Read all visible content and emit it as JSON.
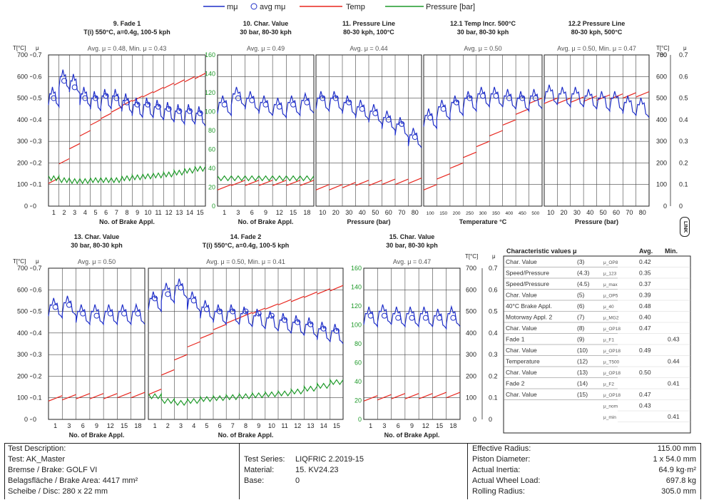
{
  "legend": [
    {
      "label": "mμ",
      "color": "#1f2fc8",
      "kind": "line"
    },
    {
      "label": "avg mμ",
      "color": "#1f2fc8",
      "kind": "circle"
    },
    {
      "label": "Temp",
      "color": "#e8261e",
      "kind": "line"
    },
    {
      "label": "Pressure [bar]",
      "color": "#1f9a2a",
      "kind": "line"
    }
  ],
  "axis_labels": {
    "temp_left": "T[°C]",
    "mu_left": "μ",
    "temp_right": "T[°C]",
    "mu_right": "μ",
    "temp_ticks": [
      "0",
      "100",
      "200",
      "300",
      "400",
      "500",
      "600",
      "700"
    ],
    "mu_ticks": [
      "0",
      "0.1",
      "0.2",
      "0.3",
      "0.4",
      "0.5",
      "0.6",
      "0.7"
    ],
    "right_temp_ticks": [
      "0",
      "100",
      "200",
      "300",
      "400",
      "500",
      "600",
      "700",
      "780"
    ],
    "pressure_ticks": [
      "0",
      "20",
      "40",
      "60",
      "80",
      "100",
      "120",
      "140",
      "160"
    ]
  },
  "link_badge": "LINK",
  "chart_data": [
    {
      "type": "line",
      "title": "9. Fade 1",
      "subtitle": "T(i) 550°C, a=0.4g, 100-5 kph",
      "avg_label": "Avg. μ = 0.48, Min. μ = 0.43",
      "xlabel": "No. of Brake Appl.",
      "x_ticks": [
        "1",
        "2",
        "3",
        "4",
        "5",
        "6",
        "7",
        "8",
        "9",
        "10",
        "11",
        "12",
        "13",
        "14",
        "15"
      ],
      "series": [
        {
          "name": "mμ",
          "values": [
            0.52,
            0.6,
            0.58,
            0.52,
            0.5,
            0.51,
            0.51,
            0.49,
            0.47,
            0.47,
            0.46,
            0.45,
            0.44,
            0.44,
            0.43
          ]
        },
        {
          "name": "avg mμ",
          "values": [
            0.5,
            0.58,
            0.55,
            0.5,
            0.5,
            0.51,
            0.5,
            0.48,
            0.47,
            0.47,
            0.46,
            0.45,
            0.44,
            0.44,
            0.43
          ]
        },
        {
          "name": "Temp",
          "values": [
            130,
            220,
            290,
            350,
            400,
            430,
            460,
            490,
            510,
            530,
            550,
            570,
            585,
            600,
            615
          ]
        },
        {
          "name": "Pressure [bar]",
          "values": [
            30,
            28,
            27,
            27,
            28,
            28,
            28,
            30,
            31,
            32,
            33,
            34,
            36,
            38,
            40
          ]
        }
      ]
    },
    {
      "type": "line",
      "title": "10. Char. Value",
      "subtitle": "30 bar, 80-30 kph",
      "avg_label": "Avg. μ = 0.49",
      "xlabel": "No. of Brake Appl.",
      "x_ticks": [
        "1",
        "3",
        "6",
        "9",
        "12",
        "15",
        "18"
      ],
      "series": [
        {
          "name": "mμ",
          "values": [
            0.48,
            0.52,
            0.5,
            0.48,
            0.47,
            0.48,
            0.49
          ]
        },
        {
          "name": "avg mμ",
          "values": [
            0.47,
            0.5,
            0.49,
            0.47,
            0.46,
            0.47,
            0.48
          ]
        },
        {
          "name": "Temp",
          "values": [
            100,
            120,
            120,
            120,
            120,
            120,
            120
          ]
        },
        {
          "name": "Pressure [bar]",
          "values": [
            30,
            30,
            30,
            30,
            30,
            30,
            30
          ]
        }
      ]
    },
    {
      "type": "line",
      "title": "11. Pressure Line",
      "subtitle": "80-30 kph, 100°C",
      "avg_label": "Avg. μ = 0.44",
      "xlabel": "Pressure (bar)",
      "x_ticks": [
        "10",
        "20",
        "30",
        "40",
        "50",
        "60",
        "70",
        "80"
      ],
      "series": [
        {
          "name": "mμ",
          "values": [
            0.5,
            0.5,
            0.48,
            0.46,
            0.44,
            0.41,
            0.38,
            0.33
          ]
        },
        {
          "name": "avg mμ",
          "values": [
            0.5,
            0.5,
            0.48,
            0.45,
            0.43,
            0.4,
            0.38,
            0.32
          ]
        },
        {
          "name": "Temp",
          "values": [
            100,
            100,
            110,
            120,
            120,
            125,
            125,
            130
          ]
        }
      ]
    },
    {
      "type": "line",
      "title": "12.1 Temp Incr. 500°C",
      "subtitle": "30 bar, 80-30 kph",
      "avg_label": "Avg. μ = 0.50",
      "xlabel": "Temperature °C",
      "x_ticks": [
        "100",
        "150",
        "200",
        "250",
        "300",
        "350",
        "400",
        "450",
        "500"
      ],
      "series": [
        {
          "name": "mμ",
          "values": [
            0.42,
            0.46,
            0.48,
            0.5,
            0.52,
            0.52,
            0.51,
            0.5,
            0.51
          ]
        },
        {
          "name": "avg mμ",
          "values": [
            0.41,
            0.45,
            0.48,
            0.5,
            0.51,
            0.51,
            0.5,
            0.5,
            0.5
          ]
        },
        {
          "name": "Temp",
          "values": [
            100,
            150,
            200,
            250,
            300,
            350,
            400,
            450,
            500
          ]
        }
      ]
    },
    {
      "type": "line",
      "title": "12.2 Pressure Line",
      "subtitle": "80-30 kph, 500°C",
      "avg_label": "Avg. μ = 0.50, Min. μ = 0.47",
      "xlabel": "Pressure (bar)",
      "x_ticks": [
        "10",
        "20",
        "30",
        "40",
        "50",
        "60",
        "70",
        "80"
      ],
      "series": [
        {
          "name": "mμ",
          "values": [
            0.53,
            0.52,
            0.52,
            0.51,
            0.5,
            0.5,
            0.48,
            0.47
          ]
        },
        {
          "name": "Temp",
          "values": [
            500,
            500,
            505,
            510,
            515,
            520,
            525,
            530
          ]
        }
      ]
    },
    {
      "type": "line",
      "title": "13. Char. Value",
      "subtitle": "30 bar, 80-30 kph",
      "avg_label": "Avg. μ = 0.50",
      "xlabel": "No. of Brake Appl.",
      "x_ticks": [
        "1",
        "3",
        "6",
        "9",
        "12",
        "15",
        "18"
      ],
      "series": [
        {
          "name": "mμ",
          "values": [
            0.53,
            0.54,
            0.5,
            0.5,
            0.5,
            0.5,
            0.5
          ]
        },
        {
          "name": "avg mμ",
          "values": [
            0.52,
            0.53,
            0.49,
            0.48,
            0.49,
            0.49,
            0.49
          ]
        },
        {
          "name": "Temp",
          "values": [
            110,
            115,
            120,
            120,
            120,
            125,
            125
          ]
        }
      ]
    },
    {
      "type": "line",
      "title": "14. Fade 2",
      "subtitle": "T(i) 550°C, a=0.4g, 100-5 kph",
      "avg_label": "Avg. μ = 0.50, Min. μ = 0.41",
      "xlabel": "No. of Brake Appl.",
      "x_ticks": [
        "1",
        "2",
        "3",
        "4",
        "5",
        "6",
        "7",
        "8",
        "9",
        "10",
        "11",
        "12",
        "13",
        "14",
        "15"
      ],
      "series": [
        {
          "name": "mμ",
          "values": [
            0.56,
            0.6,
            0.62,
            0.56,
            0.52,
            0.5,
            0.5,
            0.49,
            0.48,
            0.47,
            0.46,
            0.45,
            0.44,
            0.42,
            0.41
          ]
        },
        {
          "name": "avg mμ",
          "values": [
            0.56,
            0.58,
            0.61,
            0.55,
            0.51,
            0.5,
            0.5,
            0.5,
            0.49,
            0.48,
            0.46,
            0.45,
            0.44,
            0.42,
            0.41
          ]
        },
        {
          "name": "Temp",
          "values": [
            140,
            230,
            300,
            360,
            400,
            440,
            470,
            495,
            515,
            535,
            555,
            570,
            590,
            605,
            620
          ]
        },
        {
          "name": "Pressure [bar]",
          "values": [
            25,
            20,
            18,
            20,
            22,
            23,
            24,
            25,
            26,
            27,
            28,
            30,
            33,
            36,
            40
          ]
        }
      ]
    },
    {
      "type": "line",
      "title": "15. Char. Value",
      "subtitle": "30 bar, 80-30 kph",
      "avg_label": "Avg. μ = 0.47",
      "xlabel": "No. of Brake Appl.",
      "x_ticks": [
        "1",
        "3",
        "6",
        "9",
        "12",
        "15",
        "18"
      ],
      "series": [
        {
          "name": "mμ",
          "values": [
            0.49,
            0.5,
            0.49,
            0.49,
            0.49,
            0.48,
            0.49
          ]
        },
        {
          "name": "avg mμ",
          "values": [
            0.48,
            0.48,
            0.47,
            0.47,
            0.47,
            0.47,
            0.47
          ]
        },
        {
          "name": "Temp",
          "values": [
            110,
            115,
            120,
            120,
            120,
            125,
            125
          ]
        }
      ]
    },
    {
      "type": "table",
      "title": "Characteristic values μ",
      "columns": [
        "",
        "",
        "",
        "Avg.",
        "Min."
      ],
      "rows": [
        [
          "Char. Value",
          "(3)",
          "μ_OP8",
          "0.42",
          ""
        ],
        [
          "Speed/Pressure",
          "(4.3)",
          "μ_123",
          "0.35",
          ""
        ],
        [
          "Speed/Pressure",
          "(4.5)",
          "μ_max",
          "0.37",
          ""
        ],
        [
          "Char. Value",
          "(5)",
          "μ_OP5",
          "0.39",
          ""
        ],
        [
          "40°C Brake Appl.",
          "(6)",
          "μ_40",
          "0.48",
          ""
        ],
        [
          "Motorway Appl. 2",
          "(7)",
          "μ_MG2",
          "0.40",
          ""
        ],
        [
          "Char. Value",
          "(8)",
          "μ_OP18",
          "0.47",
          ""
        ],
        [
          "Fade 1",
          "(9)",
          "μ_F1",
          "",
          "0.43"
        ],
        [
          "Char. Value",
          "(10)",
          "μ_OP18",
          "0.49",
          ""
        ],
        [
          "Temperature",
          "(12)",
          "μ_T500",
          "",
          "0.44"
        ],
        [
          "Char. Value",
          "(13)",
          "μ_OP18",
          "0.50",
          ""
        ],
        [
          "Fade 2",
          "(14)",
          "μ_F2",
          "",
          "0.41"
        ],
        [
          "Char. Value",
          "(15)",
          "μ_OP18",
          "0.47",
          ""
        ],
        [
          "",
          "",
          "μ_nom",
          "0.43",
          ""
        ],
        [
          "",
          "",
          "μ_min",
          "",
          "0.41"
        ]
      ]
    }
  ],
  "footer": {
    "col1": [
      "Test Description:",
      "Test:   AK_Master",
      "Bremse / Brake:   GOLF VI",
      "Belagsfläche / Brake Area:   4417 mm²",
      "Scheibe / Disc:   280 x 22 mm"
    ],
    "col2": [
      {
        "k": "Test Series:",
        "v": "LIQFRIC 2.2019-15"
      },
      {
        "k": "Material:",
        "v": "15. KV24.23"
      },
      {
        "k": "Base:",
        "v": "0"
      }
    ],
    "col3": [
      {
        "k": "Effective Radius:",
        "v": "115.00 mm"
      },
      {
        "k": "Piston Diameter:",
        "v": "1 x 54.0 mm"
      },
      {
        "k": "Actual Inertia:",
        "v": "64.9 kg·m²"
      },
      {
        "k": "Actual Wheel Load:",
        "v": "697.8 kg"
      },
      {
        "k": "Rolling Radius:",
        "v": "305.0 mm"
      }
    ]
  }
}
